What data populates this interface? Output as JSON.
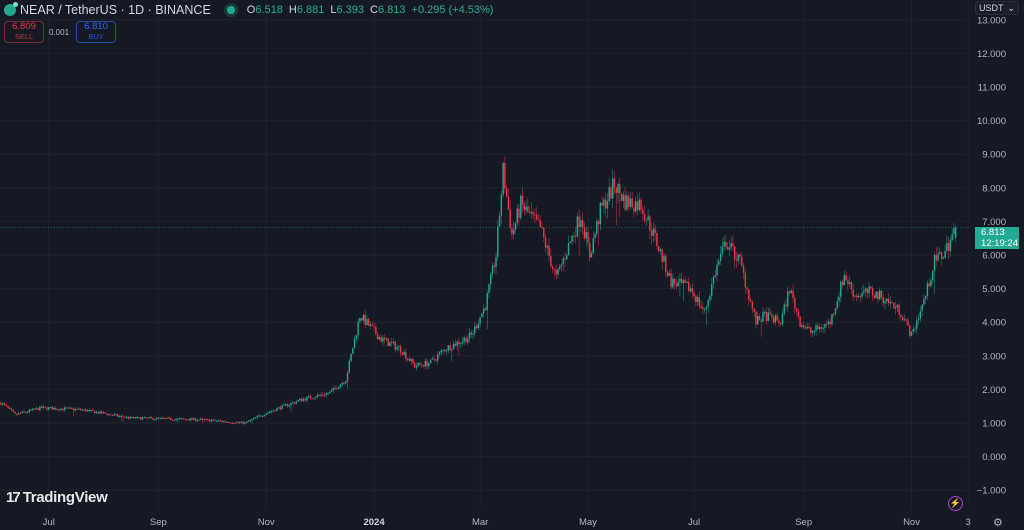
{
  "header": {
    "symbol_title": "NEAR / TetherUS · 1D · BINANCE",
    "open_label": "O",
    "open": "6.518",
    "high_label": "H",
    "high": "6.881",
    "low_label": "L",
    "low": "6.393",
    "close_label": "C",
    "close": "6.813",
    "change": "+0.295 (+4.53%)"
  },
  "trade": {
    "sell_price": "6.809",
    "sell_label": "SELL",
    "spread": "0.001",
    "buy_price": "6.810",
    "buy_label": "BUY"
  },
  "currency": "USDT",
  "last_price": {
    "price": "6.813",
    "countdown": "12:19:24"
  },
  "branding": "TradingView",
  "colors": {
    "up": "#22ab94",
    "down": "#f23645",
    "background": "#151924",
    "grid": "#1e2230"
  },
  "chart_data": {
    "type": "candlestick",
    "y_ticks": [
      -1,
      0,
      1,
      2,
      3,
      4,
      5,
      6,
      7,
      8,
      9,
      10,
      11,
      12,
      13
    ],
    "y_tick_labels": [
      "−1.000",
      "0.000",
      "1.000",
      "2.000",
      "3.000",
      "4.000",
      "5.000",
      "6.000",
      "7.000",
      "8.000",
      "9.000",
      "10.000",
      "11.000",
      "12.000",
      "13.000"
    ],
    "x_ticks": [
      {
        "label": "Jul",
        "day": 27
      },
      {
        "label": "Sep",
        "day": 89
      },
      {
        "label": "Nov",
        "day": 150
      },
      {
        "label": "2024",
        "day": 211
      },
      {
        "label": "Mar",
        "day": 271
      },
      {
        "label": "May",
        "day": 332
      },
      {
        "label": "Jul",
        "day": 392
      },
      {
        "label": "Sep",
        "day": 454
      },
      {
        "label": "Nov",
        "day": 515
      },
      {
        "label": "3",
        "day": 547
      }
    ],
    "close_path": [
      [
        0,
        1.6
      ],
      [
        8,
        1.25
      ],
      [
        23,
        1.45
      ],
      [
        45,
        1.4
      ],
      [
        73,
        1.15
      ],
      [
        113,
        1.1
      ],
      [
        138,
        1.0
      ],
      [
        150,
        1.3
      ],
      [
        170,
        1.7
      ],
      [
        186,
        1.9
      ],
      [
        195,
        2.3
      ],
      [
        203,
        4.2
      ],
      [
        215,
        3.5
      ],
      [
        226,
        3.2
      ],
      [
        234,
        2.7
      ],
      [
        243,
        2.8
      ],
      [
        251,
        3.2
      ],
      [
        266,
        3.6
      ],
      [
        274,
        4.5
      ],
      [
        280,
        6.0
      ],
      [
        284,
        8.5
      ],
      [
        289,
        6.6
      ],
      [
        294,
        7.5
      ],
      [
        305,
        6.8
      ],
      [
        314,
        5.3
      ],
      [
        319,
        6.0
      ],
      [
        328,
        7.2
      ],
      [
        333,
        6.0
      ],
      [
        339,
        7.3
      ],
      [
        347,
        8.1
      ],
      [
        353,
        7.6
      ],
      [
        362,
        7.5
      ],
      [
        370,
        6.5
      ],
      [
        379,
        5.2
      ],
      [
        390,
        5.0
      ],
      [
        398,
        4.3
      ],
      [
        404,
        5.5
      ],
      [
        410,
        6.4
      ],
      [
        418,
        5.8
      ],
      [
        427,
        4.0
      ],
      [
        432,
        4.2
      ],
      [
        441,
        4.0
      ],
      [
        446,
        5.0
      ],
      [
        452,
        4.0
      ],
      [
        458,
        3.7
      ],
      [
        469,
        4.0
      ],
      [
        477,
        5.4
      ],
      [
        483,
        4.8
      ],
      [
        492,
        4.9
      ],
      [
        500,
        4.7
      ],
      [
        509,
        4.3
      ],
      [
        515,
        3.6
      ],
      [
        523,
        4.8
      ],
      [
        528,
        5.8
      ],
      [
        534,
        6.1
      ],
      [
        540,
        6.813
      ]
    ],
    "last": {
      "open": 6.518,
      "high": 6.881,
      "low": 6.393,
      "close": 6.813
    }
  }
}
